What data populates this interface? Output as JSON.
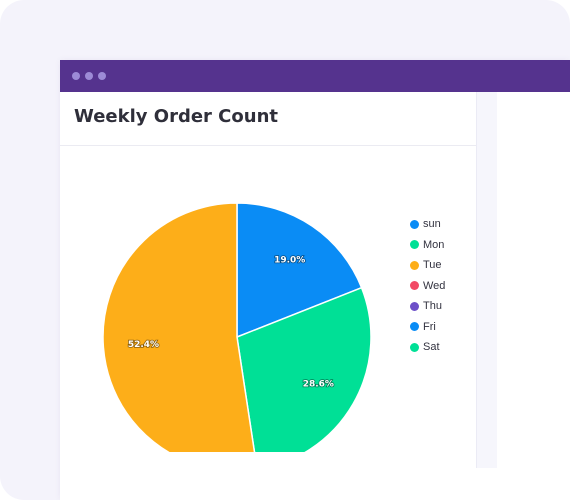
{
  "window": {
    "dots": [
      "dot",
      "dot",
      "dot"
    ]
  },
  "panel": {
    "title": "Weekly Order Count"
  },
  "chart_data": {
    "type": "pie",
    "title": "Weekly Order Count",
    "categories": [
      "sun",
      "Mon",
      "Tue",
      "Wed",
      "Thu",
      "Fri",
      "Sat"
    ],
    "values": [
      19.0,
      28.6,
      52.4,
      0,
      0,
      0,
      0
    ],
    "data_labels": [
      "19.0%",
      "28.6%",
      "52.4%",
      "",
      "",
      "",
      ""
    ],
    "colors": [
      "#0a8cf5",
      "#00e096",
      "#fdae19",
      "#f24a66",
      "#6d50c8",
      "#0a8cf5",
      "#00e096"
    ],
    "legend": "right"
  }
}
